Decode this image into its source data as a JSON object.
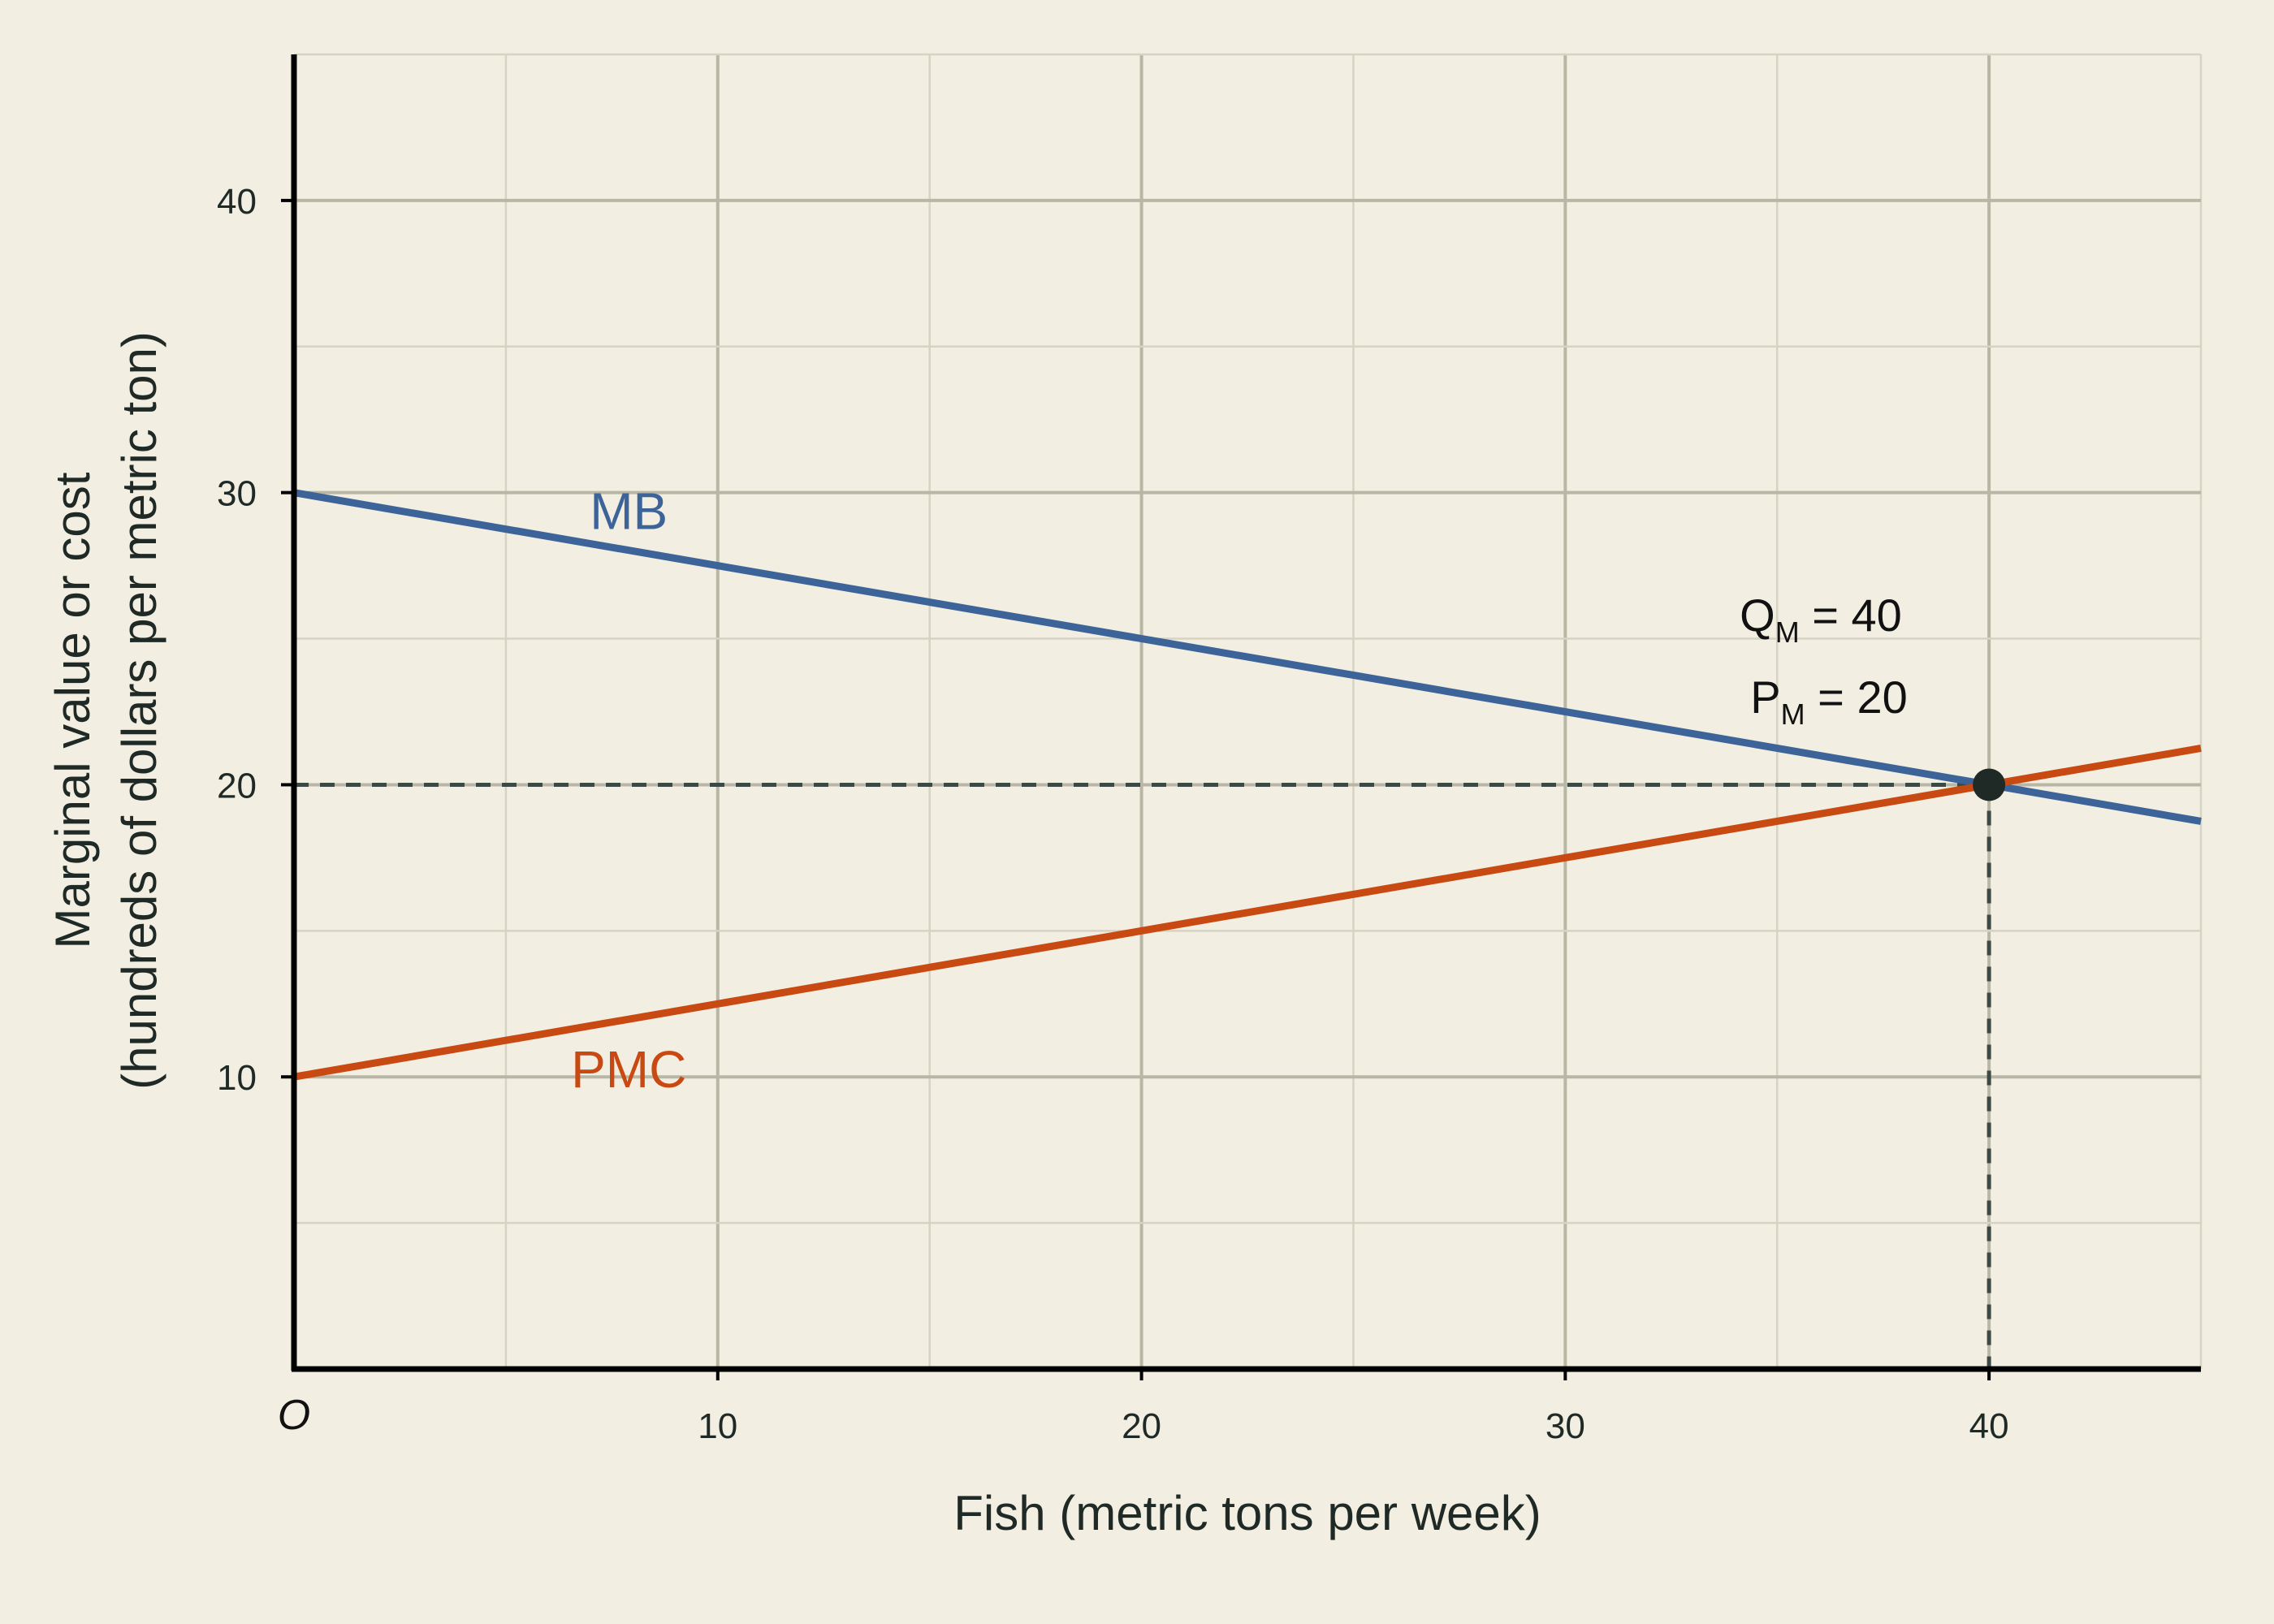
{
  "chart_data": {
    "type": "line",
    "xlabel": "Fish (metric tons per week)",
    "ylabel_line1": "Marginal value or cost",
    "ylabel_line2": "(hundreds of dollars per metric ton)",
    "origin_label": "O",
    "xlim": [
      0,
      45
    ],
    "ylim": [
      0,
      45
    ],
    "x_ticks": [
      10,
      20,
      30,
      40
    ],
    "y_ticks": [
      10,
      20,
      30,
      40
    ],
    "grid": true,
    "series": [
      {
        "name": "MB",
        "color": "#3d6499",
        "x": [
          0,
          45
        ],
        "y": [
          30,
          18.75
        ]
      },
      {
        "name": "PMC",
        "color": "#c84a12",
        "x": [
          0,
          45
        ],
        "y": [
          10,
          21.25
        ]
      }
    ],
    "equilibrium": {
      "x": 40,
      "y": 20,
      "q_label_main": "Q",
      "q_label_sub": "M",
      "q_label_rest": " = 40",
      "p_label_main": "P",
      "p_label_sub": "M",
      "p_label_rest": " = 20"
    }
  },
  "colors": {
    "background": "#f2eee2",
    "grid_major": "#b8b6a4",
    "grid_minor": "#d6d3c3",
    "axis": "#000000",
    "dashed": "#3c4a46",
    "point": "#1f2a26"
  }
}
